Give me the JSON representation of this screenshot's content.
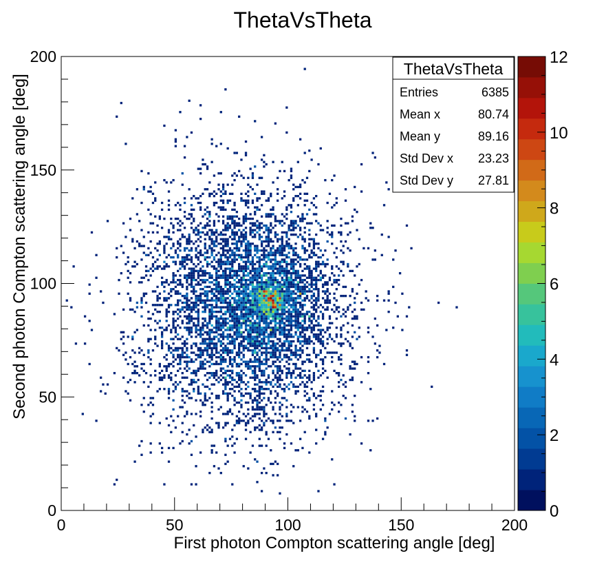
{
  "chart_data": {
    "type": "heatmap",
    "title": "ThetaVsTheta",
    "xlabel": "First photon Compton scattering angle [deg]",
    "ylabel": "Second photon Compton scattering angle [deg]",
    "xlim": [
      0,
      200
    ],
    "ylim": [
      0,
      200
    ],
    "zlim": [
      0,
      12
    ],
    "x_ticks": [
      "0",
      "50",
      "100",
      "150",
      "200"
    ],
    "y_ticks": [
      "0",
      "50",
      "100",
      "150",
      "200"
    ],
    "z_ticks": [
      "0",
      "2",
      "4",
      "6",
      "8",
      "10",
      "12"
    ],
    "grid": false,
    "stats_box": {
      "title": "ThetaVsTheta",
      "rows": [
        {
          "label": "Entries",
          "value": "6385"
        },
        {
          "label": "Mean x",
          "value": "80.74"
        },
        {
          "label": "Mean y",
          "value": "89.16"
        },
        {
          "label": "Std Dev x",
          "value": "23.23"
        },
        {
          "label": "Std Dev y",
          "value": "27.81"
        }
      ]
    },
    "distribution": {
      "entries": 6385,
      "mean_x": 80.74,
      "mean_y": 89.16,
      "std_x": 23.23,
      "std_y": 27.81,
      "peak": {
        "x": 92,
        "y": 93,
        "value": 12
      }
    },
    "palette": [
      "#00105e",
      "#00237a",
      "#013b92",
      "#0352a6",
      "#0867b6",
      "#107cc6",
      "#1792ce",
      "#1aa8cc",
      "#22bbbb",
      "#37c29c",
      "#55c77b",
      "#7fcf4f",
      "#a6d831",
      "#c8cb1b",
      "#cfa81b",
      "#d38a1c",
      "#d16a18",
      "#cd4713",
      "#c52a0e",
      "#b3140a",
      "#961007",
      "#760c05"
    ]
  }
}
